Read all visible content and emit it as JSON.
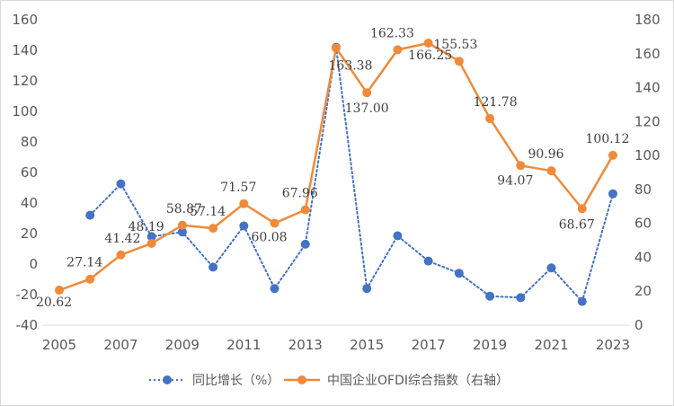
{
  "chart_data": {
    "type": "line",
    "x": [
      2005,
      2006,
      2007,
      2008,
      2009,
      2010,
      2011,
      2012,
      2013,
      2014,
      2015,
      2016,
      2017,
      2018,
      2019,
      2020,
      2021,
      2022,
      2023
    ],
    "x_tick_labels": [
      "2005",
      "2007",
      "2009",
      "2011",
      "2013",
      "2015",
      "2017",
      "2019",
      "2021",
      "2023"
    ],
    "left_axis": {
      "ylim": [
        -40,
        160
      ],
      "ticks": [
        -40,
        -20,
        0,
        20,
        40,
        60,
        80,
        100,
        120,
        140,
        160
      ]
    },
    "right_axis": {
      "ylim": [
        0,
        180
      ],
      "ticks": [
        0,
        20,
        40,
        60,
        80,
        100,
        120,
        140,
        160,
        180
      ]
    },
    "grid": false,
    "legend_position": "bottom",
    "series": [
      {
        "name": "同比增长（%）",
        "axis": "left",
        "style": "dotted",
        "color": "#4472C4",
        "values": [
          null,
          32,
          52.5,
          18,
          21,
          -2,
          25,
          -16,
          13,
          142,
          -16,
          18.5,
          2,
          -6,
          -21,
          -22,
          -2.5,
          -24.5,
          46
        ]
      },
      {
        "name": "中国企业OFDI综合指数（右轴）",
        "axis": "right",
        "style": "solid",
        "color": "#F08A3A",
        "values": [
          20.62,
          27.14,
          41.42,
          48.19,
          58.87,
          57.14,
          71.57,
          60.08,
          67.96,
          163.38,
          137.0,
          162.33,
          166.25,
          155.53,
          121.78,
          94.07,
          90.96,
          68.67,
          100.12
        ],
        "data_labels": [
          "20.62",
          "27.14",
          "41.42",
          "48.19",
          "58.87",
          "57.14",
          "71.57",
          "60.08",
          "67.96",
          "163.38",
          "137.00",
          "162.33",
          "166.25",
          "155.53",
          "121.78",
          "94.07",
          "90.96",
          "68.67",
          "100.12"
        ]
      }
    ]
  }
}
